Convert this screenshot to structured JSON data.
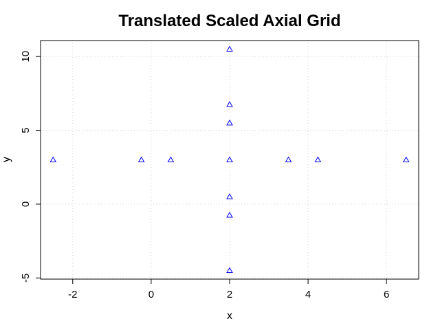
{
  "chart_data": {
    "type": "scatter",
    "title": "Translated Scaled Axial Grid",
    "xlabel": "x",
    "ylabel": "y",
    "xlim": [
      -2.82,
      6.82
    ],
    "ylim": [
      -5.08,
      11.08
    ],
    "xticks": [
      -2,
      0,
      2,
      4,
      6
    ],
    "yticks": [
      -5,
      0,
      5,
      10
    ],
    "grid": true,
    "marker": "open-triangle",
    "point_color": "#0000ff",
    "points": [
      {
        "x": -2.5,
        "y": 3.0
      },
      {
        "x": -0.25,
        "y": 3.0
      },
      {
        "x": 0.5,
        "y": 3.0
      },
      {
        "x": 2.0,
        "y": 3.0
      },
      {
        "x": 3.5,
        "y": 3.0
      },
      {
        "x": 4.25,
        "y": 3.0
      },
      {
        "x": 6.5,
        "y": 3.0
      },
      {
        "x": 2.0,
        "y": -4.5
      },
      {
        "x": 2.0,
        "y": -0.75
      },
      {
        "x": 2.0,
        "y": 0.5
      },
      {
        "x": 2.0,
        "y": 5.5
      },
      {
        "x": 2.0,
        "y": 6.75
      },
      {
        "x": 2.0,
        "y": 10.5
      }
    ]
  }
}
